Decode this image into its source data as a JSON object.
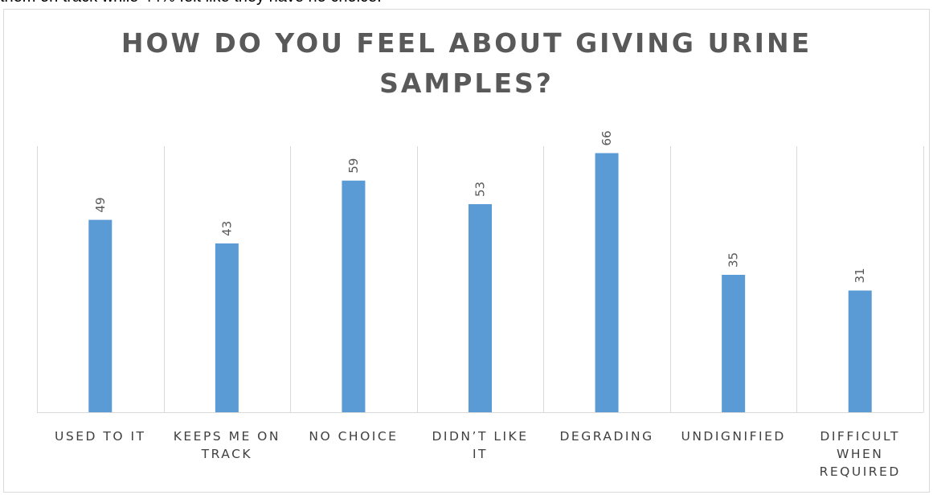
{
  "doc_text": "them on track while 44% felt like they have no choice.",
  "chart_data": {
    "type": "bar",
    "title": "HOW DO YOU FEEL ABOUT GIVING URINE SAMPLES?",
    "title_lines": [
      "HOW DO YOU FEEL ABOUT GIVING URINE",
      "SAMPLES?"
    ],
    "categories": [
      "USED TO IT",
      "KEEPS ME ON TRACK",
      "NO CHOICE",
      "DIDN’T LIKE IT",
      "DEGRADING",
      "UNDIGNIFIED",
      "DIFFICULT WHEN REQUIRED"
    ],
    "category_lines": [
      [
        "USED TO IT"
      ],
      [
        "KEEPS ME ON",
        "TRACK"
      ],
      [
        "NO CHOICE"
      ],
      [
        "DIDN’T LIKE",
        "IT"
      ],
      [
        "DEGRADING"
      ],
      [
        "UNDIGNIFIED"
      ],
      [
        "DIFFICULT",
        "WHEN",
        "REQUIRED"
      ]
    ],
    "values": [
      49,
      43,
      59,
      53,
      66,
      35,
      31
    ],
    "data_labels": [
      "49",
      "43",
      "59",
      "53",
      "66",
      "35",
      "31"
    ],
    "ylim": [
      0,
      70
    ],
    "bar_color": "#5b9bd5",
    "grid": "vertical category separators",
    "legend": "none",
    "data_label_orientation": "rotated"
  }
}
